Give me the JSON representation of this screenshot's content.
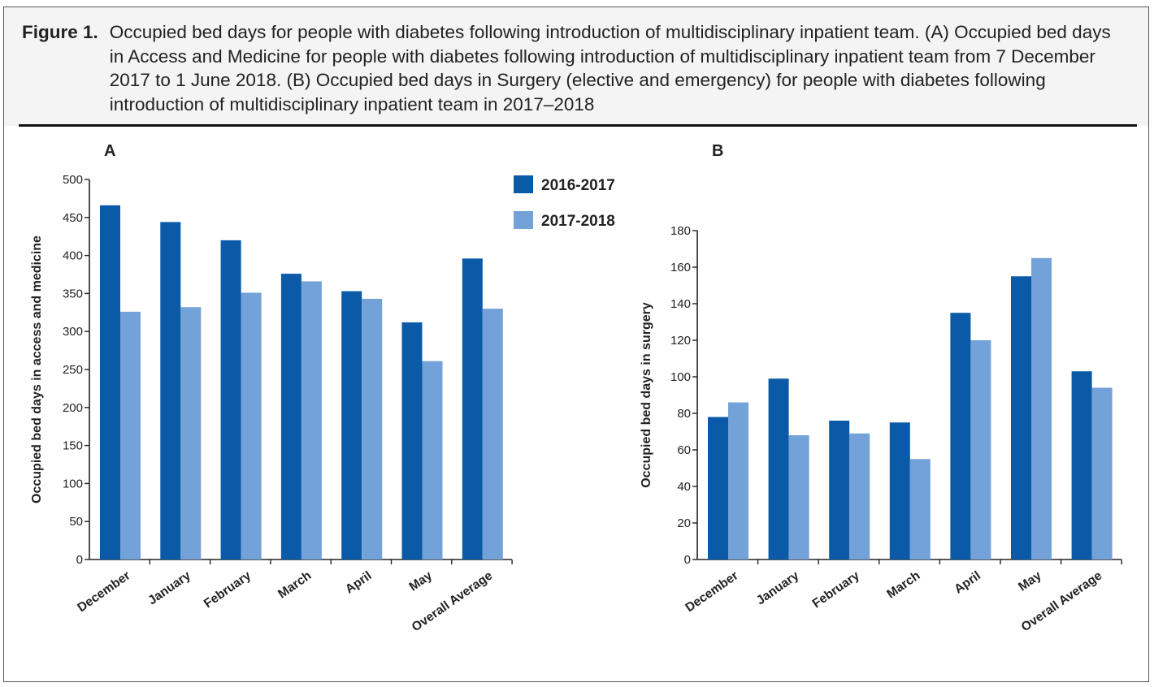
{
  "caption": {
    "label": "Figure 1.",
    "text": "Occupied bed days for people with diabetes following introduction of multidisciplinary inpatient team. (A) Occupied bed days in Access and Medicine for people with diabetes following introduction of multidisciplinary inpatient team from 7 December 2017 to 1 June 2018. (B) Occupied bed days in Surgery (elective and emergency) for people with diabetes following introduction of multidisciplinary inpatient team in 2017–2018"
  },
  "colors": {
    "series1": "#0a5aa8",
    "series2": "#73a2d8",
    "axis": "#222222"
  },
  "chart_data": [
    {
      "id": "A",
      "type": "bar",
      "title": "A",
      "ylabel": "Occupied bed days in access and medicine",
      "xlabel": "",
      "ylim": [
        0,
        500
      ],
      "yticks": [
        0,
        50,
        100,
        150,
        200,
        250,
        300,
        350,
        400,
        450,
        500
      ],
      "categories": [
        "December",
        "January",
        "February",
        "March",
        "April",
        "May",
        "Overall Average"
      ],
      "legend": "top-right",
      "series": [
        {
          "name": "2016-2017",
          "values": [
            466,
            444,
            420,
            376,
            353,
            312,
            396
          ]
        },
        {
          "name": "2017-2018",
          "values": [
            326,
            332,
            351,
            366,
            343,
            261,
            330
          ]
        }
      ]
    },
    {
      "id": "B",
      "type": "bar",
      "title": "B",
      "ylabel": "Occupied bed days in surgery",
      "xlabel": "",
      "ylim": [
        0,
        180
      ],
      "yticks": [
        0,
        20,
        40,
        60,
        80,
        100,
        120,
        140,
        160,
        180
      ],
      "categories": [
        "December",
        "January",
        "February",
        "March",
        "April",
        "May",
        "Overall Average"
      ],
      "series": [
        {
          "name": "2016-2017",
          "values": [
            78,
            99,
            76,
            75,
            135,
            155,
            103
          ]
        },
        {
          "name": "2017-2018",
          "values": [
            86,
            68,
            69,
            55,
            120,
            165,
            94
          ]
        }
      ]
    }
  ]
}
